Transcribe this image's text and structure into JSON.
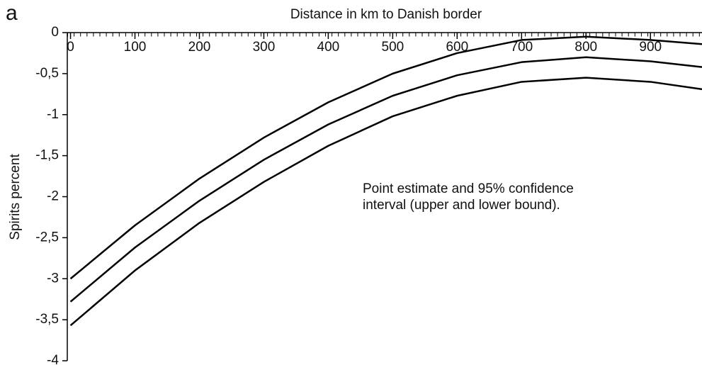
{
  "chart_data": {
    "type": "line",
    "panel_label": "a",
    "xlabel": "Distance in km to Danish border",
    "ylabel": "Spirits percent",
    "annotation": [
      "Point estimate and 95% confidence",
      "interval (upper and lower bound)."
    ],
    "x": [
      0,
      100,
      200,
      300,
      400,
      500,
      600,
      700,
      800,
      900,
      980
    ],
    "series": [
      {
        "name": "Upper bound",
        "color": "#000000",
        "values": [
          -3.0,
          -2.35,
          -1.78,
          -1.28,
          -0.85,
          -0.5,
          -0.25,
          -0.09,
          -0.05,
          -0.09,
          -0.14
        ]
      },
      {
        "name": "Point estimate",
        "color": "#000000",
        "values": [
          -3.28,
          -2.62,
          -2.05,
          -1.55,
          -1.12,
          -0.77,
          -0.52,
          -0.36,
          -0.3,
          -0.35,
          -0.42
        ]
      },
      {
        "name": "Lower bound",
        "color": "#000000",
        "values": [
          -3.57,
          -2.9,
          -2.32,
          -1.82,
          -1.38,
          -1.02,
          -0.77,
          -0.6,
          -0.55,
          -0.6,
          -0.69
        ]
      }
    ],
    "xlim": [
      -5,
      980
    ],
    "xticks": [
      0,
      100,
      200,
      300,
      400,
      500,
      600,
      700,
      800,
      900
    ],
    "ylim": [
      -4,
      0
    ],
    "yticks": [
      0,
      {
        "value": -0.5,
        "label": "-0,5"
      },
      -1,
      {
        "value": -1.5,
        "label": "-1,5"
      },
      -2,
      {
        "value": -2.5,
        "label": "-2,5"
      },
      -3,
      {
        "value": -3.5,
        "label": "-3,5"
      },
      -4
    ]
  }
}
